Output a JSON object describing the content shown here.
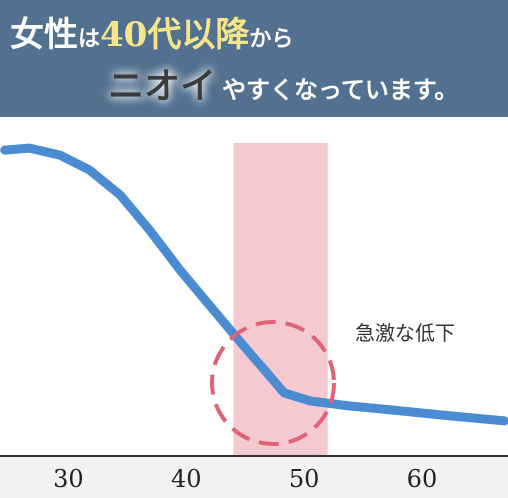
{
  "chart_data": {
    "type": "line",
    "title": [
      "女性",
      "は",
      "40代以降",
      "から"
    ],
    "subtitle": [
      "ニオイ",
      "やすくなっています。"
    ],
    "annotation": "急激な低下",
    "x": [
      24.6,
      26.7,
      29.3,
      31.8,
      34.4,
      36.9,
      39.5,
      42.0,
      44.5,
      46.7,
      48.3,
      50.5,
      53.9,
      58.1,
      62.3,
      67.0
    ],
    "series": [
      {
        "color": "#4a8bd2",
        "values": [
          90.5,
          91.1,
          89.0,
          84.6,
          77.2,
          66.8,
          54.9,
          44.5,
          34.1,
          25.2,
          18.7,
          16.3,
          14.8,
          13.4,
          11.9,
          10.4
        ]
      }
    ],
    "highlight": {
      "x": [
        44,
        52
      ],
      "color": "#f5c9d0"
    },
    "xlim": [
      24.2,
      67.3
    ],
    "xticks": [
      30,
      40,
      50,
      60
    ],
    "ylim": [
      0,
      100
    ]
  }
}
